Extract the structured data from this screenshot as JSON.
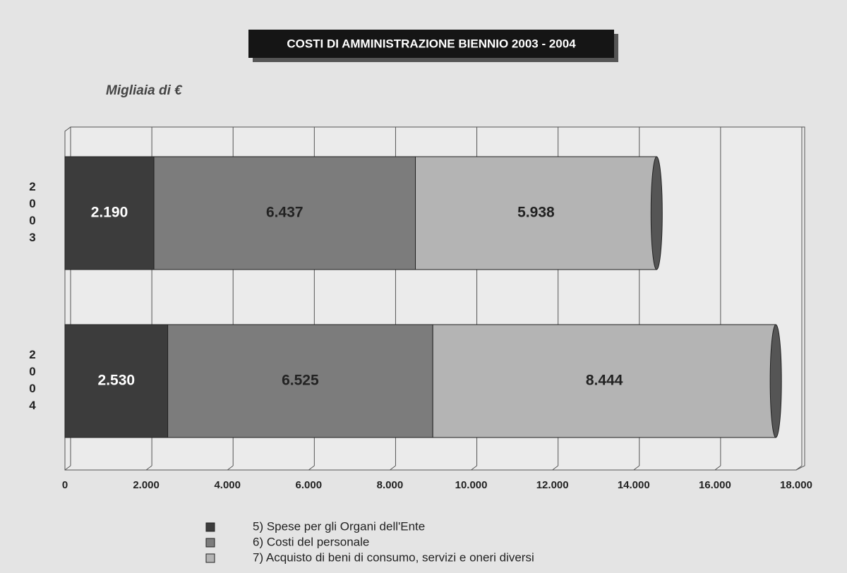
{
  "chart_data": {
    "type": "stacked_barh",
    "title": "COSTI DI AMMINISTRAZIONE BIENNIO 2003 - 2004",
    "subtitle": "Migliaia di €",
    "categories": [
      "2003",
      "2004"
    ],
    "series": [
      {
        "name": "5) Spese per gli Organi dell'Ente",
        "color": "#3c3c3c",
        "values": [
          2190,
          2530
        ],
        "value_labels": [
          "2.190",
          "2.530"
        ]
      },
      {
        "name": "6) Costi del personale",
        "color": "#7c7c7c",
        "values": [
          6437,
          6525
        ],
        "value_labels": [
          "6.437",
          "6.525"
        ]
      },
      {
        "name": "7) Acquisto di beni di consumo, servizi e oneri diversi",
        "color": "#b4b4b4",
        "values": [
          5938,
          8444
        ],
        "value_labels": [
          "5.938",
          "8.444"
        ]
      }
    ],
    "xlim": [
      0,
      18000
    ],
    "xticks": [
      0,
      {
        "value": 2000,
        "label": "2.000"
      },
      {
        "value": 4000,
        "label": "4.000"
      },
      {
        "value": 6000,
        "label": "6.000"
      },
      {
        "value": 8000,
        "label": "8.000"
      },
      {
        "value": 10000,
        "label": "10.000"
      },
      {
        "value": 12000,
        "label": "12.000"
      },
      {
        "value": 14000,
        "label": "14.000"
      },
      {
        "value": 16000,
        "label": "16.000"
      },
      {
        "value": 18000,
        "label": "18.000"
      }
    ],
    "grid": true
  }
}
